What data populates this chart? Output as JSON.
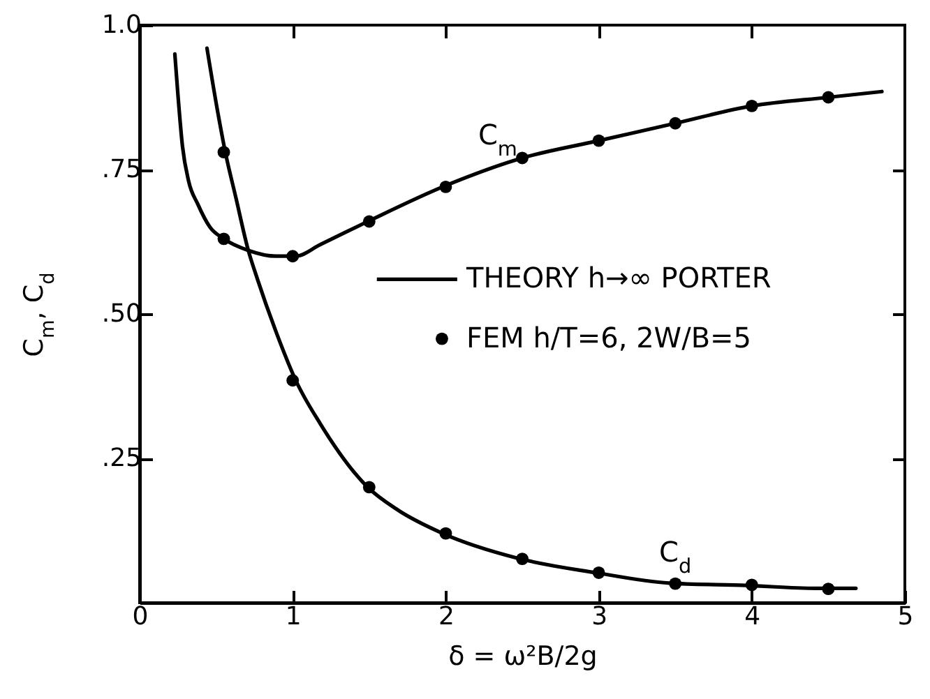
{
  "chart_data": {
    "type": "line",
    "xlabel": "δ = ω²B/2g",
    "ylabel": "C$_{m}$, C$_{d}$",
    "xlim": [
      0,
      5
    ],
    "ylim": [
      0,
      1
    ],
    "xticks": [
      0,
      1,
      2,
      3,
      4,
      5
    ],
    "yticks": [
      {
        "value": 0.25,
        "label": ".25"
      },
      {
        "value": 0.5,
        "label": ".50"
      },
      {
        "value": 0.75,
        "label": ".75"
      },
      {
        "value": 1,
        "label": "1.0"
      }
    ],
    "grid": false,
    "legend": "right",
    "series": [
      {
        "name": "THEORY h→∞ PORTER",
        "color": "#000000",
        "x": [
          0.23,
          0.25,
          0.28,
          0.32,
          0.38,
          0.46,
          0.55,
          0.71,
          0.89,
          1.02,
          1.18,
          1.49,
          1.98,
          2.5,
          3.0,
          3.5,
          4.0,
          4.5,
          4.85
        ],
        "values": [
          0.95,
          0.88,
          0.79,
          0.73,
          0.69,
          0.65,
          0.63,
          0.61,
          0.6,
          0.6,
          0.62,
          0.66,
          0.72,
          0.77,
          0.8,
          0.83,
          0.86,
          0.875,
          0.885
        ]
      },
      {
        "color": "#000000",
        "x": [
          0.44,
          0.51,
          0.56,
          0.63,
          0.71,
          0.77,
          0.89,
          1.02,
          1.18,
          1.49,
          1.69,
          1.98,
          2.47,
          2.98,
          3.46,
          3.96,
          4.42,
          4.68
        ],
        "values": [
          0.96,
          0.85,
          0.78,
          0.7,
          0.61,
          0.56,
          0.47,
          0.385,
          0.31,
          0.2,
          0.16,
          0.12,
          0.077,
          0.052,
          0.034,
          0.03,
          0.025,
          0.025
        ]
      },
      {
        "name": "FEM h/T=6, 2W/B=5",
        "type": "scatter",
        "marker": "circle",
        "color": "#000000",
        "x": [
          0.55,
          1.0,
          1.5,
          2.0,
          2.5,
          3.0,
          3.5,
          4.0,
          4.5
        ],
        "values": [
          0.63,
          0.6,
          0.66,
          0.72,
          0.77,
          0.8,
          0.83,
          0.86,
          0.875
        ]
      },
      {
        "type": "scatter",
        "marker": "circle",
        "color": "#000000",
        "x": [
          0.55,
          1.0,
          1.5,
          2.0,
          2.5,
          3.0,
          3.5,
          4.0,
          4.5
        ],
        "values": [
          0.78,
          0.385,
          0.2,
          0.12,
          0.076,
          0.052,
          0.033,
          0.031,
          0.024
        ]
      }
    ],
    "annotations": [
      {
        "text": "C$_{m}$",
        "x": 2.34,
        "y": 0.755
      },
      {
        "text": "C$_{d}$",
        "x": 3.5,
        "y": 0.033
      }
    ]
  }
}
